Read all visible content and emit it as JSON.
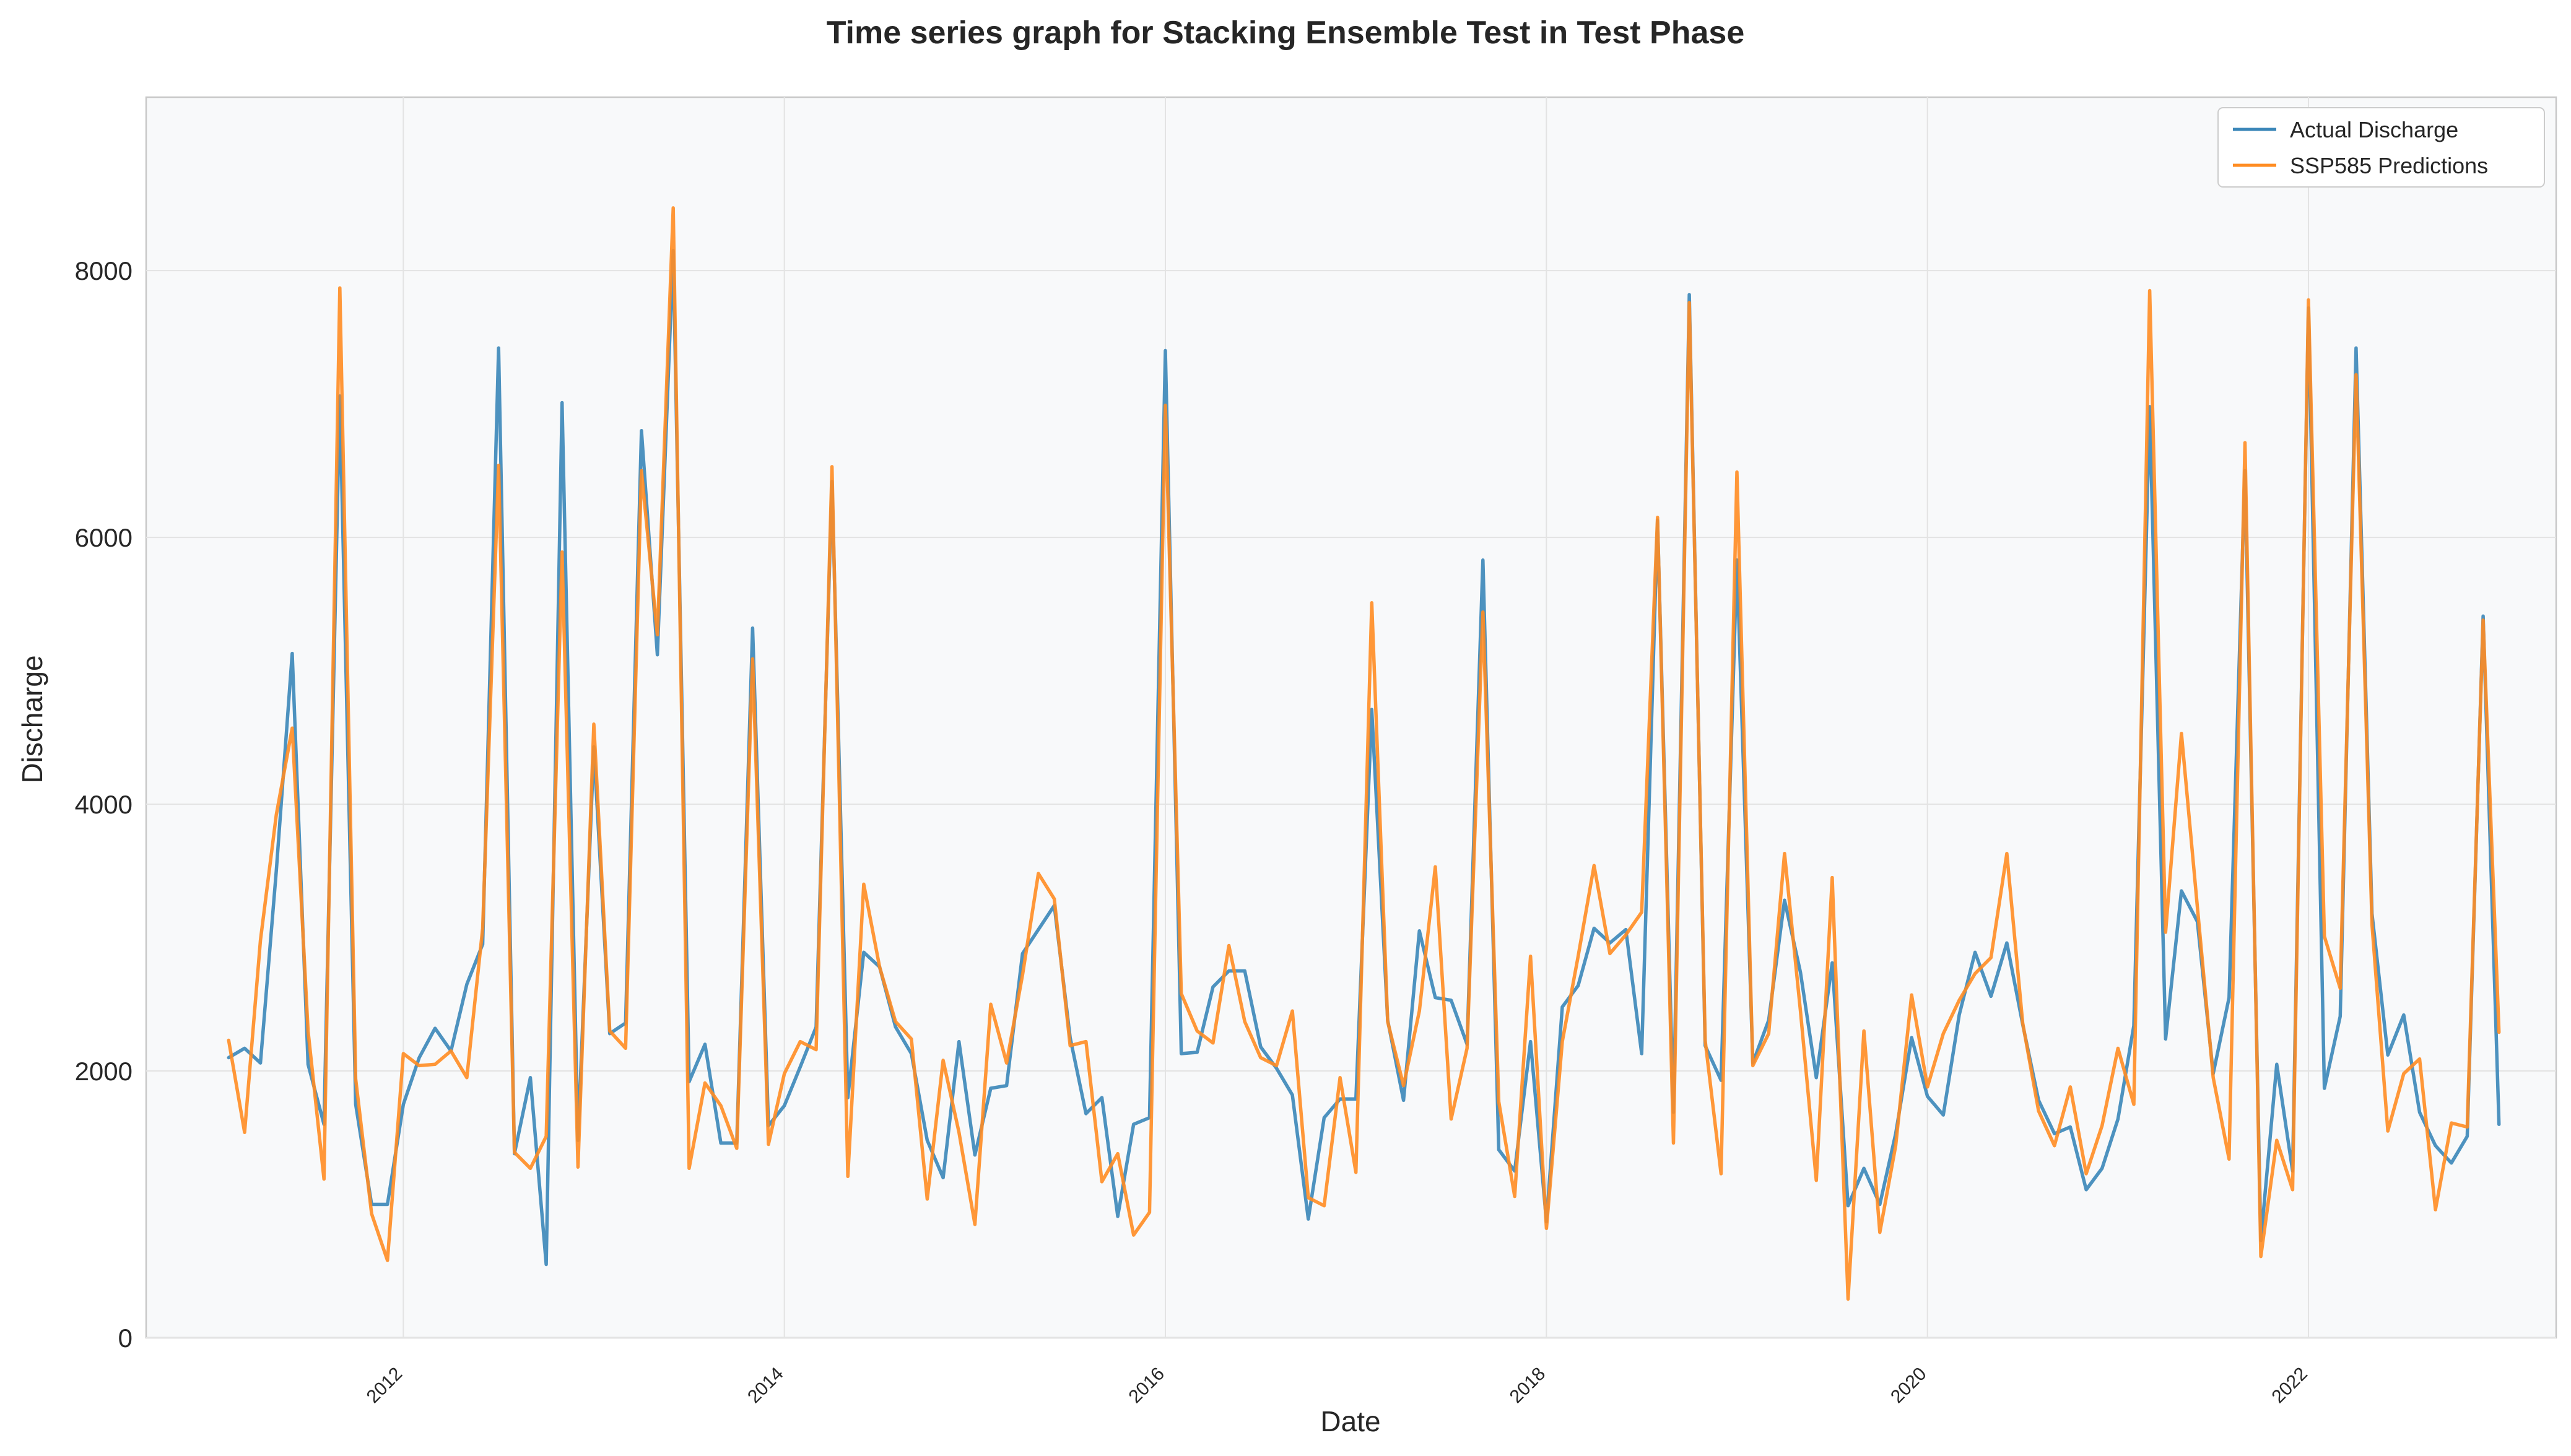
{
  "chart_data": {
    "type": "line",
    "title": "Time series graph for Stacking Ensemble Test in Test Phase",
    "xlabel": "Date",
    "ylabel": "Discharge",
    "xlim": [
      2010.65,
      2023.3
    ],
    "ylim": [
      0,
      9300
    ],
    "x_ticks": [
      2012,
      2014,
      2016,
      2018,
      2020,
      2022
    ],
    "x_tick_labels": [
      "2012",
      "2014",
      "2016",
      "2018",
      "2020",
      "2022"
    ],
    "y_ticks": [
      0,
      2000,
      4000,
      6000,
      8000
    ],
    "y_tick_labels": [
      "0",
      "2000",
      "4000",
      "6000",
      "8000"
    ],
    "grid": true,
    "legend_position": "top-right",
    "series": [
      {
        "name": "Actual Discharge",
        "color": "#3a86b8",
        "values": [
          2100,
          2170,
          2060,
          3500,
          5130,
          2050,
          1600,
          7060,
          1750,
          1000,
          1000,
          1750,
          2100,
          2320,
          2150,
          2650,
          2950,
          7420,
          1380,
          1950,
          550,
          7010,
          1480,
          4430,
          2280,
          2360,
          6800,
          5120,
          8150,
          1920,
          2200,
          1460,
          1460,
          5320,
          1590,
          1740,
          2030,
          2330,
          6420,
          1800,
          2890,
          2780,
          2330,
          2130,
          1480,
          1200,
          2220,
          1370,
          1870,
          1890,
          2880,
          3060,
          3240,
          2250,
          1680,
          1800,
          910,
          1600,
          1650,
          7400,
          2130,
          2140,
          2630,
          2750,
          2750,
          2180,
          2020,
          1820,
          890,
          1650,
          1790,
          1790,
          4710,
          2380,
          1780,
          3050,
          2550,
          2530,
          2200,
          5830,
          1410,
          1250,
          2220,
          870,
          2480,
          2640,
          3070,
          2960,
          3060,
          2130,
          6130,
          1690,
          7820,
          2190,
          1930,
          5830,
          2060,
          2380,
          3280,
          2740,
          1950,
          2810,
          990,
          1270,
          1000,
          1530,
          2250,
          1810,
          1670,
          2420,
          2890,
          2560,
          2960,
          2350,
          1780,
          1530,
          1580,
          1110,
          1270,
          1640,
          2340,
          6980,
          2240,
          3350,
          3120,
          1980,
          2550,
          6500,
          730,
          2050,
          1250,
          7720,
          1870,
          2410,
          7420,
          3180,
          2120,
          2420,
          1690,
          1440,
          1310,
          1510,
          5410,
          1600
        ]
      },
      {
        "name": "SSP585 Predictions",
        "color": "#ff8c22",
        "values": [
          2230,
          1540,
          2980,
          3920,
          4570,
          2300,
          1190,
          7870,
          1940,
          930,
          580,
          2130,
          2040,
          2050,
          2150,
          1950,
          3070,
          6540,
          1390,
          1270,
          1510,
          5890,
          1280,
          4600,
          2300,
          2170,
          6500,
          5270,
          8470,
          1270,
          1910,
          1740,
          1420,
          5090,
          1450,
          1980,
          2220,
          2160,
          6530,
          1210,
          3400,
          2780,
          2370,
          2240,
          1040,
          2080,
          1540,
          850,
          2500,
          2060,
          2720,
          3480,
          3290,
          2190,
          2220,
          1170,
          1380,
          770,
          940,
          6990,
          2580,
          2300,
          2210,
          2940,
          2370,
          2100,
          2040,
          2450,
          1050,
          990,
          1950,
          1240,
          5510,
          2370,
          1890,
          2450,
          3530,
          1640,
          2170,
          5440,
          1770,
          1060,
          2860,
          820,
          2220,
          2860,
          3540,
          2880,
          3020,
          3190,
          6150,
          1460,
          7760,
          2230,
          1230,
          6490,
          2040,
          2280,
          3630,
          2450,
          1180,
          3450,
          290,
          2300,
          790,
          1440,
          2570,
          1880,
          2280,
          2530,
          2730,
          2850,
          3630,
          2360,
          1700,
          1440,
          1880,
          1230,
          1590,
          2170,
          1750,
          7850,
          3040,
          4530,
          3230,
          1950,
          1340,
          6710,
          610,
          1480,
          1110,
          7780,
          3010,
          2620,
          7220,
          3100,
          1550,
          1980,
          2090,
          960,
          1610,
          1580,
          5380,
          2290
        ]
      }
    ]
  }
}
